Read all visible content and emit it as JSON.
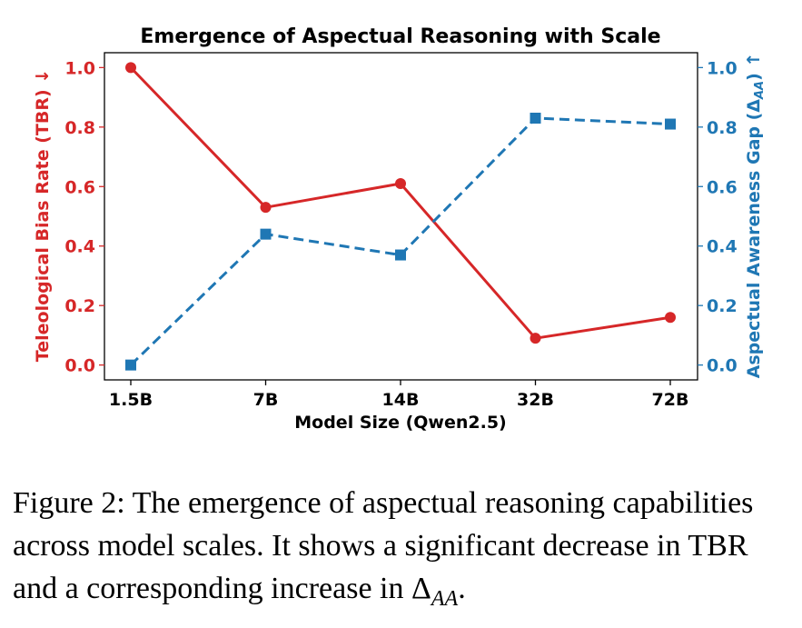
{
  "chart_data": {
    "type": "line",
    "title": "Emergence of Aspectual Reasoning with Scale",
    "xlabel": "Model Size (Qwen2.5)",
    "categories": [
      "1.5B",
      "7B",
      "14B",
      "32B",
      "72B"
    ],
    "y_left": {
      "label": "Teleological Bias Rate (TBR)",
      "arrow": "↓",
      "color": "#d62728",
      "ylim": [
        -0.05,
        1.05
      ],
      "ticks": [
        "0.0",
        "0.2",
        "0.4",
        "0.6",
        "0.8",
        "1.0"
      ]
    },
    "y_right": {
      "label": "Aspectual Awareness Gap (Δ",
      "label_sub": "AA",
      "label_end": ")",
      "arrow": "↑",
      "color": "#1f77b4",
      "ylim": [
        -0.05,
        1.05
      ],
      "ticks": [
        "0.0",
        "0.2",
        "0.4",
        "0.6",
        "0.8",
        "1.0"
      ]
    },
    "series": [
      {
        "values": [
          1.0,
          0.53,
          0.61,
          0.09,
          0.16
        ],
        "color": "#d62728",
        "marker": "circle",
        "style": "solid",
        "axis": "left"
      },
      {
        "values": [
          0.0,
          0.44,
          0.37,
          0.83,
          0.81
        ],
        "color": "#1f77b4",
        "marker": "square",
        "style": "dashed",
        "axis": "right"
      }
    ],
    "grid": false,
    "legend": "none"
  },
  "caption": {
    "text": "Figure 2: The emergence of aspectual reasoning capabilities across model scales. It shows a significant decrease in TBR and a corresponding increase in ",
    "symbol": "Δ",
    "sub": "AA",
    "end": "."
  }
}
